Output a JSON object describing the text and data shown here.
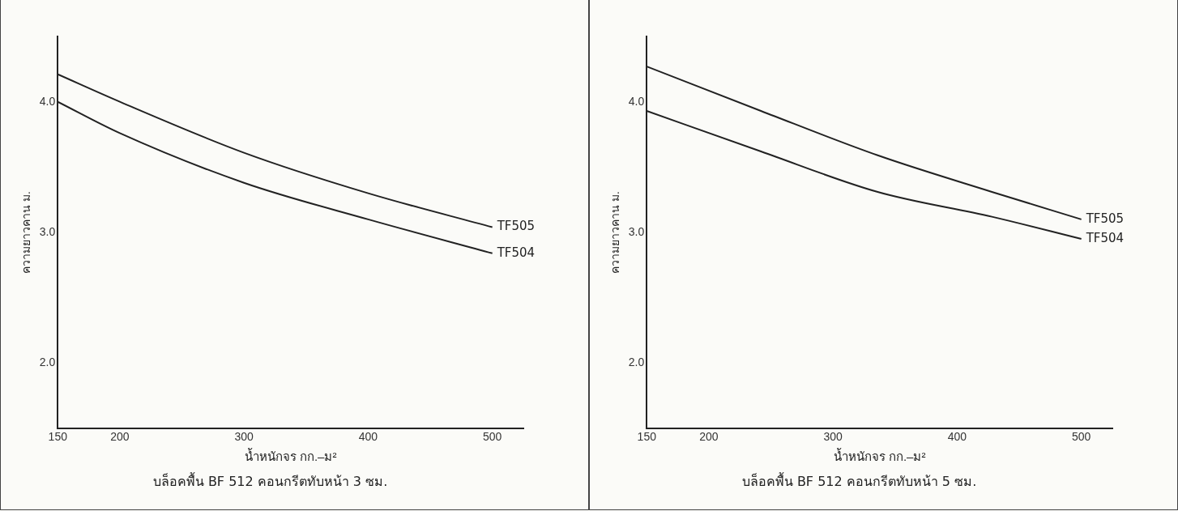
{
  "chart_data": [
    {
      "type": "line",
      "title": "บล็อคพื้น BF 512 คอนกรีตทับหน้า 3 ซม.",
      "xlabel": "น้ำหนักจร กก.–ม²",
      "ylabel": "ความยาวคาน ม.",
      "xlim": [
        150,
        525
      ],
      "xticks": [
        150,
        200,
        300,
        400,
        500
      ],
      "ylim": [
        1.5,
        4.5
      ],
      "yticks": [
        {
          "value": 2,
          "label": "2.0"
        },
        {
          "value": 3,
          "label": "3.0"
        },
        {
          "value": 4,
          "label": "4.0"
        }
      ],
      "grid": false,
      "legend": false,
      "marker": "none",
      "line_style": "solid",
      "series": [
        {
          "name": "TF505",
          "color": "#222222",
          "x": [
            150,
            200,
            300,
            400,
            500
          ],
          "values": [
            4.21,
            4.0,
            3.61,
            3.3,
            3.04
          ]
        },
        {
          "name": "TF504",
          "color": "#222222",
          "x": [
            150,
            200,
            300,
            400,
            500
          ],
          "values": [
            4.0,
            3.76,
            3.38,
            3.1,
            2.84
          ]
        }
      ]
    },
    {
      "type": "line",
      "title": "บล็อคพื้น BF 512 คอนกรีตทับหน้า 5 ซม.",
      "xlabel": "น้ำหนักจร กก.–ม²",
      "ylabel": "ความยาวคาน ม.",
      "xlim": [
        150,
        525
      ],
      "xticks": [
        150,
        200,
        300,
        400,
        500
      ],
      "ylim": [
        1.5,
        4.5
      ],
      "yticks": [
        {
          "value": 2,
          "label": "2.0"
        },
        {
          "value": 3,
          "label": "3.0"
        },
        {
          "value": 4,
          "label": "4.0"
        }
      ],
      "grid": false,
      "legend": false,
      "marker": "none",
      "line_style": "solid",
      "series": [
        {
          "name": "TF505",
          "color": "#222222",
          "x": [
            150,
            242,
            336,
            428,
            500
          ],
          "values": [
            4.27,
            3.93,
            3.59,
            3.31,
            3.1
          ]
        },
        {
          "name": "TF504",
          "color": "#222222",
          "x": [
            150,
            242,
            336,
            428,
            500
          ],
          "values": [
            3.93,
            3.62,
            3.31,
            3.12,
            2.95
          ]
        }
      ]
    }
  ]
}
